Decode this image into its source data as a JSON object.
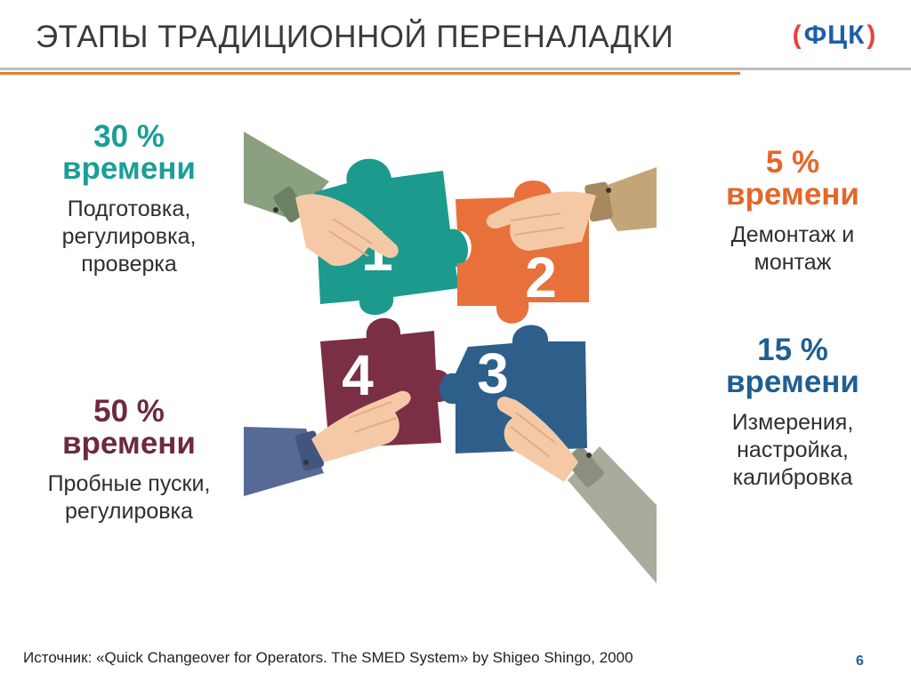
{
  "title": "ЭТАПЫ ТРАДИЦИОННОЙ ПЕРЕНАЛАДКИ",
  "logo": {
    "left": "(",
    "text": "ФЦК",
    "right": ")"
  },
  "stages": [
    {
      "number": "1",
      "percent": "30 %",
      "word": "времени",
      "description": [
        "Подготовка,",
        "регулировка,",
        "проверка"
      ],
      "color": "#1a9e98"
    },
    {
      "number": "2",
      "percent": "5 %",
      "word": "времени",
      "description": [
        "Демонтаж и",
        "монтаж"
      ],
      "color": "#e5662a"
    },
    {
      "number": "3",
      "percent": "15 %",
      "word": "времени",
      "description": [
        "Измерения,",
        "настройка,",
        "калибровка"
      ],
      "color": "#1f5f92"
    },
    {
      "number": "4",
      "percent": "50 %",
      "word": "времени",
      "description": [
        "Пробные пуски,",
        "регулировка"
      ],
      "color": "#6d2a3e"
    }
  ],
  "source": "Источник: «Quick Changeover for Operators. The SMED System» by Shigeo Shingo, 2000",
  "page_number": "6"
}
